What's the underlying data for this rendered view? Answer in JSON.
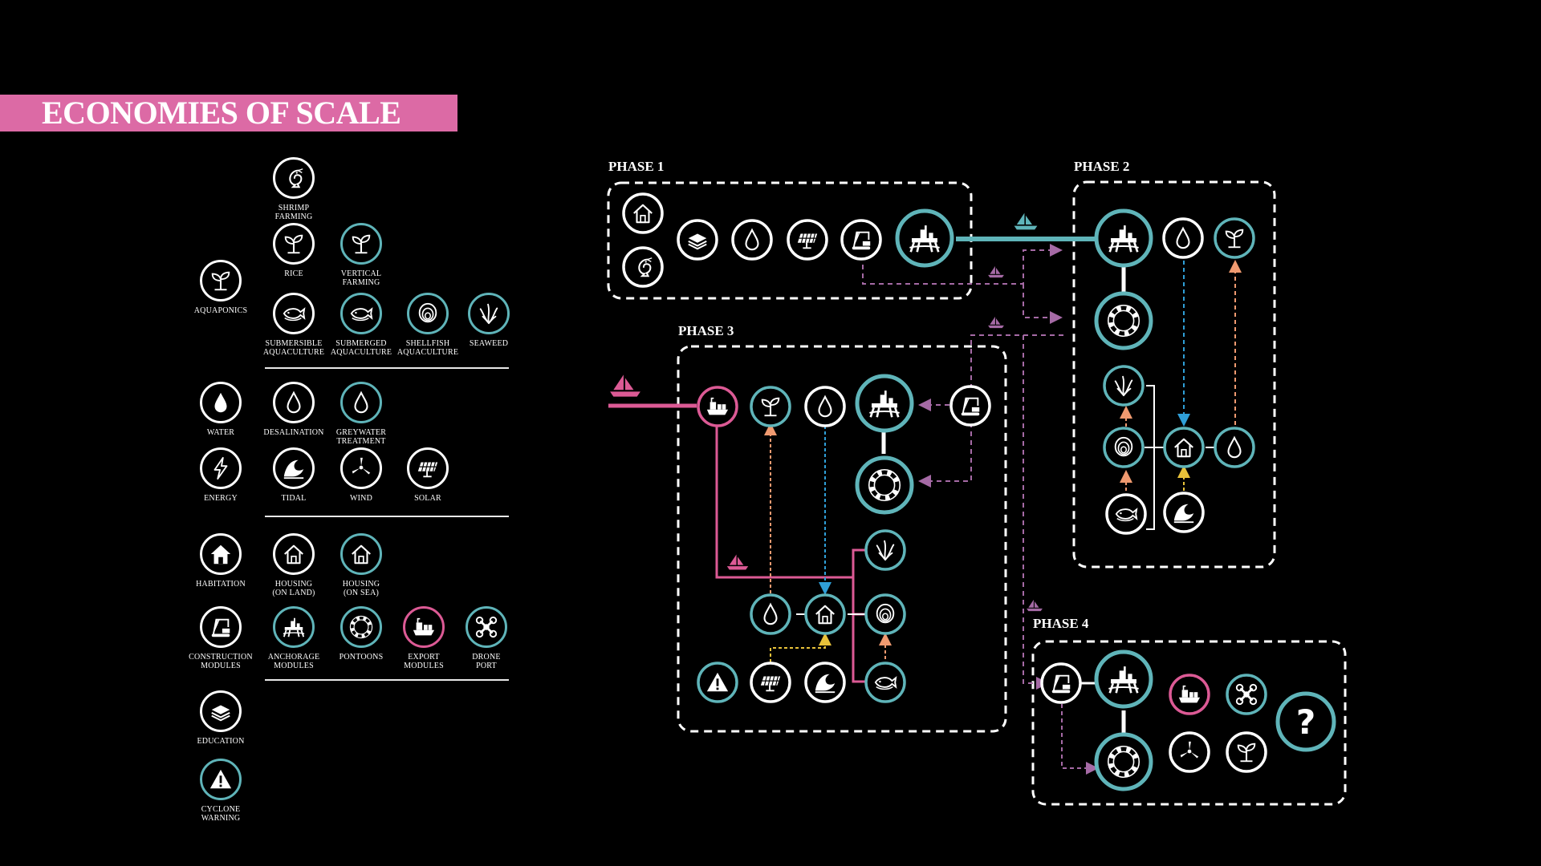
{
  "title": "ECONOMIES OF SCALE",
  "colors": {
    "teal": "#5fb4b9",
    "pink": "#dc5a95",
    "white": "#ffffff",
    "title_bar": "#dc6aa5",
    "blue": "#2f9fd8",
    "orange": "#f09a70",
    "purple": "#a56aa5",
    "yellow": "#e8c23a"
  },
  "legend": [
    {
      "key": "shrimp",
      "label": "SHRIMP\nFARMING",
      "icon": "shrimp-icon",
      "ring": "white"
    },
    {
      "key": "rice",
      "label": "RICE",
      "icon": "sprout-icon",
      "ring": "white"
    },
    {
      "key": "vertical",
      "label": "VERTICAL\nFARMING",
      "icon": "sprout-icon",
      "ring": "teal"
    },
    {
      "key": "aquaponics",
      "label": "AQUAPONICS",
      "icon": "sprout-icon",
      "ring": "white"
    },
    {
      "key": "submersible",
      "label": "SUBMERSIBLE\nAQUACULTURE",
      "icon": "fish-icon",
      "ring": "white"
    },
    {
      "key": "submerged",
      "label": "SUBMERGED\nAQUACULTURE",
      "icon": "fish-icon",
      "ring": "teal"
    },
    {
      "key": "shellfish",
      "label": "SHELLFISH\nAQUACULTURE",
      "icon": "shell-icon",
      "ring": "teal"
    },
    {
      "key": "seaweed",
      "label": "SEAWEED",
      "icon": "seaweed-icon",
      "ring": "teal"
    },
    {
      "key": "water",
      "label": "WATER",
      "icon": "drop-icon",
      "ring": "white"
    },
    {
      "key": "desal",
      "label": "DESALINATION",
      "icon": "drop-icon",
      "ring": "white"
    },
    {
      "key": "grey",
      "label": "GREYWATER\nTREATMENT",
      "icon": "drop-icon",
      "ring": "teal"
    },
    {
      "key": "energy",
      "label": "ENERGY",
      "icon": "lightning-icon",
      "ring": "white"
    },
    {
      "key": "tidal",
      "label": "TIDAL",
      "icon": "wave-icon",
      "ring": "white"
    },
    {
      "key": "wind",
      "label": "WIND",
      "icon": "turbine-icon",
      "ring": "white"
    },
    {
      "key": "solar",
      "label": "SOLAR",
      "icon": "solar-icon",
      "ring": "white"
    },
    {
      "key": "habitation",
      "label": "HABITATION",
      "icon": "house-icon",
      "ring": "white"
    },
    {
      "key": "housing_land",
      "label": "HOUSING\n(ON LAND)",
      "icon": "house-icon",
      "ring": "white"
    },
    {
      "key": "housing_sea",
      "label": "HOUSING\n(ON SEA)",
      "icon": "house-icon",
      "ring": "teal"
    },
    {
      "key": "construction",
      "label": "CONSTRUCTION\nMODULES",
      "icon": "crane-icon",
      "ring": "white"
    },
    {
      "key": "anchorage",
      "label": "ANCHORAGE\nMODULES",
      "icon": "platform-icon",
      "ring": "teal"
    },
    {
      "key": "pontoons",
      "label": "PONTOONS",
      "icon": "lifebuoy-icon",
      "ring": "teal"
    },
    {
      "key": "export",
      "label": "EXPORT\nMODULES",
      "icon": "ship-icon",
      "ring": "pink"
    },
    {
      "key": "drone",
      "label": "DRONE\nPORT",
      "icon": "drone-icon",
      "ring": "teal"
    },
    {
      "key": "education",
      "label": "EDUCATION",
      "icon": "books-icon",
      "ring": "white"
    },
    {
      "key": "cyclone",
      "label": "CYCLONE\nWARNING",
      "icon": "warning-icon",
      "ring": "teal"
    }
  ],
  "phases": [
    {
      "label": "PHASE 1"
    },
    {
      "label": "PHASE 2"
    },
    {
      "label": "PHASE 3"
    },
    {
      "label": "PHASE 4"
    }
  ],
  "unknown_node": {
    "text": "?",
    "icon": "question-icon"
  }
}
